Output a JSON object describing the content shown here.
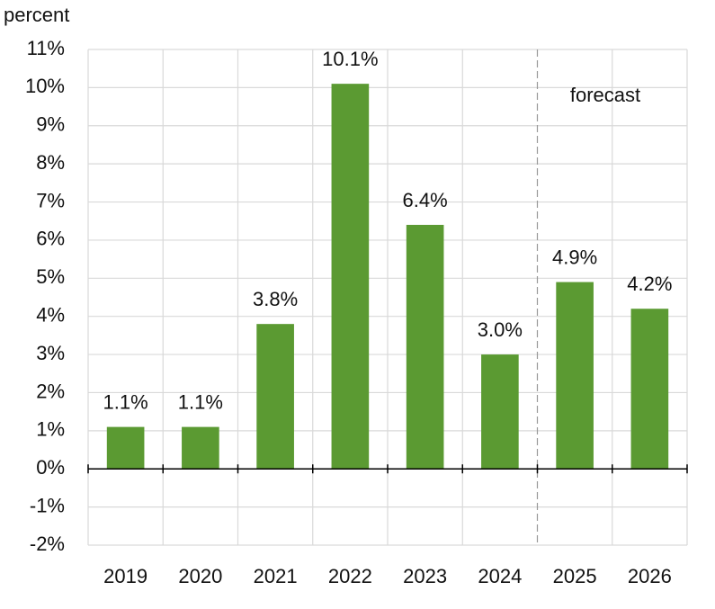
{
  "chart_data": {
    "type": "bar",
    "y_axis_label": "percent",
    "annotation": "forecast",
    "categories": [
      "2019",
      "2020",
      "2021",
      "2022",
      "2023",
      "2024",
      "2025",
      "2026"
    ],
    "values": [
      1.1,
      1.1,
      3.8,
      10.1,
      6.4,
      3.0,
      4.9,
      4.2
    ],
    "value_labels": [
      "1.1%",
      "1.1%",
      "3.8%",
      "10.1%",
      "6.4%",
      "3.0%",
      "4.9%",
      "4.2%"
    ],
    "color": "#5b9a32",
    "ylim": [
      -2,
      11
    ],
    "yticks": [
      {
        "value": -2,
        "label": "-2%"
      },
      {
        "value": -1,
        "label": "-1%"
      },
      {
        "value": 0,
        "label": "0%"
      },
      {
        "value": 1,
        "label": "1%"
      },
      {
        "value": 2,
        "label": "2%"
      },
      {
        "value": 3,
        "label": "3%"
      },
      {
        "value": 4,
        "label": "4%"
      },
      {
        "value": 5,
        "label": "5%"
      },
      {
        "value": 6,
        "label": "6%"
      },
      {
        "value": 7,
        "label": "7%"
      },
      {
        "value": 8,
        "label": "8%"
      },
      {
        "value": 9,
        "label": "9%"
      },
      {
        "value": 10,
        "label": "10%"
      },
      {
        "value": 11,
        "label": "11%"
      }
    ],
    "grid": true
  }
}
